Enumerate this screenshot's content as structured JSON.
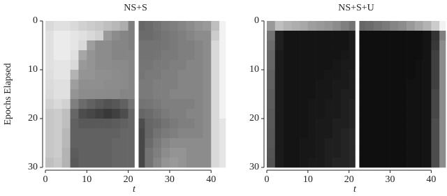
{
  "chart_data": [
    {
      "type": "heatmap",
      "title": "NS+S",
      "x_label": "t",
      "y_label": "Epochs Elapsed",
      "xlim": [
        0,
        43.5
      ],
      "ylim": [
        0,
        30
      ],
      "y_inverted": true,
      "xticks": [
        0,
        10,
        20,
        30,
        40
      ],
      "yticks": [
        0,
        10,
        20,
        30
      ],
      "x_bins": [
        0,
        2,
        4,
        6,
        8,
        10,
        12,
        14,
        16,
        18,
        20,
        21.5,
        22.5,
        24,
        26,
        28,
        30,
        32,
        34,
        36,
        38,
        40,
        42,
        43.5
      ],
      "y_bins": [
        0,
        2,
        4,
        6,
        8,
        10,
        12,
        14,
        16,
        18,
        20,
        22,
        24,
        26,
        28,
        30
      ],
      "values": [
        [
          85,
          88,
          88,
          85,
          82,
          80,
          78,
          75,
          72,
          68,
          50,
          null,
          40,
          42,
          45,
          48,
          50,
          52,
          55,
          58,
          60,
          75,
          95
        ],
        [
          88,
          92,
          92,
          90,
          88,
          85,
          82,
          60,
          55,
          52,
          50,
          null,
          42,
          42,
          44,
          46,
          48,
          50,
          52,
          55,
          55,
          80,
          95
        ],
        [
          88,
          92,
          92,
          90,
          85,
          62,
          55,
          55,
          52,
          52,
          50,
          null,
          45,
          45,
          45,
          46,
          48,
          50,
          50,
          52,
          55,
          85,
          95
        ],
        [
          88,
          92,
          92,
          88,
          65,
          58,
          55,
          55,
          52,
          52,
          52,
          null,
          45,
          45,
          46,
          48,
          48,
          50,
          50,
          52,
          55,
          85,
          95
        ],
        [
          88,
          90,
          90,
          85,
          60,
          58,
          55,
          55,
          54,
          54,
          52,
          null,
          46,
          46,
          48,
          48,
          50,
          50,
          52,
          52,
          55,
          85,
          95
        ],
        [
          87,
          90,
          90,
          70,
          58,
          58,
          56,
          56,
          55,
          54,
          52,
          null,
          46,
          48,
          48,
          50,
          50,
          52,
          52,
          52,
          55,
          85,
          95
        ],
        [
          86,
          88,
          88,
          62,
          56,
          56,
          56,
          55,
          55,
          54,
          52,
          null,
          48,
          48,
          50,
          50,
          50,
          52,
          52,
          52,
          55,
          85,
          95
        ],
        [
          85,
          88,
          88,
          58,
          55,
          55,
          54,
          54,
          54,
          52,
          52,
          null,
          48,
          48,
          50,
          50,
          52,
          52,
          52,
          52,
          55,
          85,
          95
        ],
        [
          82,
          85,
          82,
          50,
          42,
          38,
          35,
          32,
          34,
          38,
          45,
          null,
          45,
          46,
          48,
          50,
          50,
          50,
          50,
          52,
          55,
          85,
          95
        ],
        [
          78,
          80,
          75,
          40,
          30,
          28,
          25,
          22,
          25,
          30,
          40,
          null,
          40,
          42,
          45,
          48,
          50,
          50,
          52,
          52,
          55,
          85,
          95
        ],
        [
          78,
          80,
          75,
          38,
          35,
          35,
          35,
          35,
          36,
          38,
          40,
          null,
          30,
          40,
          42,
          45,
          48,
          50,
          50,
          52,
          55,
          85,
          90
        ],
        [
          78,
          80,
          72,
          38,
          38,
          38,
          38,
          38,
          38,
          40,
          40,
          null,
          28,
          40,
          45,
          48,
          50,
          52,
          52,
          52,
          55,
          85,
          90
        ],
        [
          78,
          80,
          72,
          38,
          38,
          38,
          38,
          38,
          40,
          40,
          40,
          null,
          28,
          42,
          48,
          52,
          55,
          55,
          55,
          55,
          55,
          85,
          90
        ],
        [
          78,
          80,
          70,
          36,
          38,
          38,
          38,
          38,
          40,
          40,
          40,
          null,
          28,
          45,
          50,
          55,
          58,
          58,
          55,
          55,
          55,
          85,
          90
        ],
        [
          75,
          78,
          70,
          35,
          38,
          38,
          38,
          38,
          40,
          40,
          40,
          null,
          28,
          45,
          52,
          58,
          60,
          58,
          55,
          55,
          55,
          85,
          90
        ]
      ]
    },
    {
      "type": "heatmap",
      "title": "NS+S+U",
      "x_label": "t",
      "xlim": [
        0,
        43.5
      ],
      "ylim": [
        0,
        30
      ],
      "y_inverted": true,
      "xticks": [
        0,
        10,
        20,
        30,
        40
      ],
      "yticks": [
        0,
        10,
        20,
        30
      ],
      "x_bins": [
        0,
        2,
        4,
        6,
        8,
        10,
        12,
        14,
        16,
        18,
        20,
        21.5,
        22.5,
        24,
        26,
        28,
        30,
        32,
        34,
        36,
        38,
        40,
        42,
        43.5
      ],
      "y_bins": [
        0,
        2,
        4,
        6,
        8,
        10,
        12,
        14,
        16,
        18,
        20,
        22,
        24,
        26,
        28,
        30
      ],
      "values": [
        [
          60,
          75,
          70,
          68,
          66,
          62,
          60,
          58,
          55,
          50,
          45,
          null,
          40,
          42,
          45,
          48,
          52,
          55,
          60,
          65,
          70,
          80,
          95
        ],
        [
          45,
          12,
          8,
          8,
          8,
          8,
          8,
          8,
          8,
          8,
          10,
          null,
          6,
          6,
          6,
          6,
          6,
          6,
          6,
          6,
          8,
          20,
          50
        ],
        [
          42,
          12,
          8,
          8,
          8,
          8,
          8,
          8,
          8,
          8,
          10,
          null,
          6,
          6,
          6,
          6,
          6,
          6,
          6,
          6,
          8,
          22,
          55
        ],
        [
          40,
          10,
          8,
          8,
          8,
          8,
          8,
          8,
          8,
          9,
          10,
          null,
          6,
          6,
          6,
          6,
          6,
          6,
          6,
          6,
          8,
          25,
          55
        ],
        [
          40,
          10,
          8,
          8,
          8,
          8,
          8,
          8,
          9,
          10,
          10,
          null,
          6,
          6,
          6,
          6,
          6,
          6,
          6,
          7,
          8,
          25,
          55
        ],
        [
          38,
          10,
          8,
          8,
          8,
          8,
          8,
          9,
          9,
          10,
          12,
          null,
          6,
          6,
          6,
          6,
          6,
          6,
          6,
          7,
          8,
          25,
          55
        ],
        [
          38,
          10,
          8,
          8,
          8,
          8,
          9,
          9,
          10,
          10,
          12,
          null,
          6,
          6,
          6,
          6,
          6,
          6,
          7,
          7,
          8,
          25,
          55
        ],
        [
          36,
          10,
          8,
          8,
          8,
          8,
          9,
          9,
          10,
          12,
          12,
          null,
          6,
          6,
          6,
          6,
          6,
          6,
          7,
          7,
          8,
          28,
          55
        ],
        [
          36,
          10,
          8,
          8,
          8,
          9,
          9,
          10,
          10,
          12,
          14,
          null,
          6,
          6,
          6,
          6,
          6,
          6,
          7,
          7,
          8,
          28,
          55
        ],
        [
          35,
          10,
          8,
          8,
          8,
          9,
          9,
          10,
          10,
          12,
          14,
          null,
          6,
          6,
          6,
          6,
          6,
          6,
          7,
          7,
          8,
          28,
          55
        ],
        [
          35,
          10,
          8,
          8,
          8,
          9,
          10,
          10,
          12,
          12,
          14,
          null,
          6,
          6,
          6,
          6,
          6,
          6,
          7,
          7,
          8,
          30,
          55
        ],
        [
          34,
          10,
          8,
          8,
          8,
          9,
          10,
          10,
          12,
          14,
          16,
          null,
          6,
          6,
          6,
          6,
          6,
          6,
          7,
          7,
          8,
          30,
          55
        ],
        [
          34,
          10,
          8,
          8,
          9,
          9,
          10,
          12,
          12,
          14,
          16,
          null,
          6,
          6,
          6,
          6,
          6,
          6,
          7,
          7,
          8,
          30,
          55
        ],
        [
          33,
          10,
          8,
          8,
          9,
          9,
          10,
          12,
          12,
          14,
          16,
          null,
          6,
          6,
          6,
          6,
          6,
          6,
          7,
          7,
          8,
          30,
          55
        ],
        [
          32,
          10,
          8,
          8,
          9,
          10,
          10,
          12,
          14,
          14,
          16,
          null,
          6,
          6,
          6,
          6,
          6,
          6,
          7,
          7,
          8,
          30,
          55
        ]
      ]
    }
  ]
}
